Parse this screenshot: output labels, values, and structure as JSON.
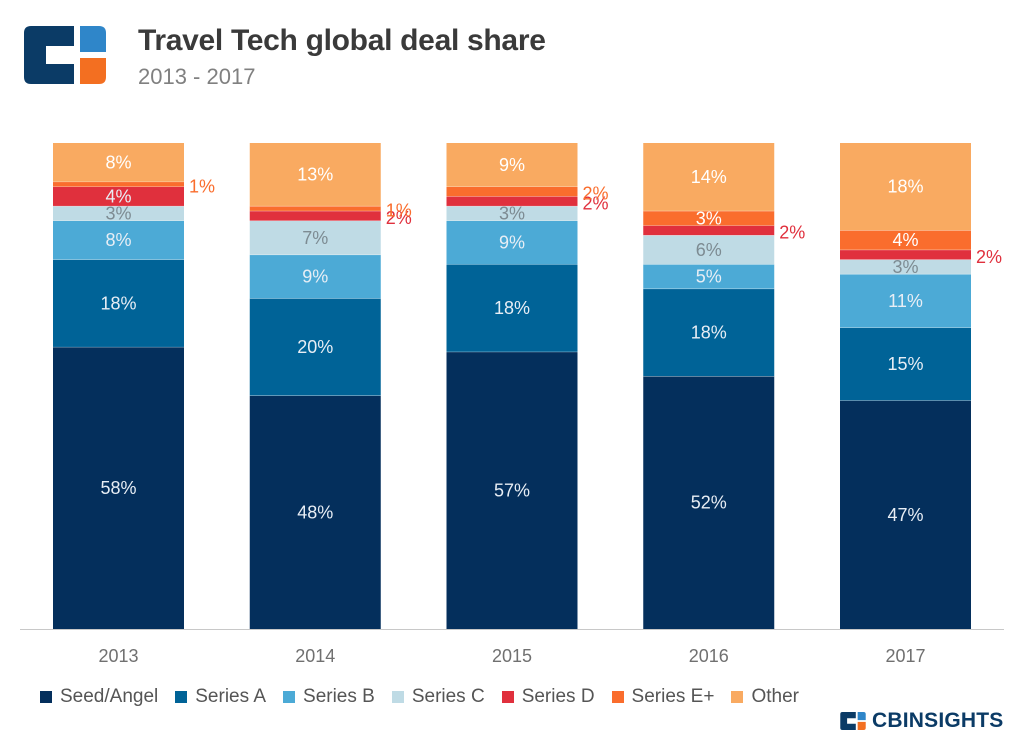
{
  "header": {
    "title": "Travel Tech global deal share",
    "subtitle": "2013 - 2017"
  },
  "brand": {
    "logo_icon": "cb-insights-logo-icon",
    "text": "CBINSIGHTS",
    "colors": {
      "navy": "#0b3b66",
      "blue": "#2f86c9",
      "orange": "#f36f21"
    }
  },
  "chart_data": {
    "type": "bar",
    "stacked": true,
    "title": "Travel Tech global deal share",
    "subtitle": "2013 - 2017",
    "xlabel": "",
    "ylabel": "",
    "ylim": [
      0,
      100
    ],
    "grid": false,
    "legend_position": "bottom",
    "categories": [
      "2013",
      "2014",
      "2015",
      "2016",
      "2017"
    ],
    "series": [
      {
        "name": "Seed/Angel",
        "color": "#042f5c",
        "values": [
          58,
          48,
          57,
          52,
          47
        ],
        "labels": [
          "58%",
          "48%",
          "57%",
          "52%",
          "47%"
        ]
      },
      {
        "name": "Series A",
        "color": "#006397",
        "values": [
          18,
          20,
          18,
          18,
          15
        ],
        "labels": [
          "18%",
          "20%",
          "18%",
          "18%",
          "15%"
        ]
      },
      {
        "name": "Series B",
        "color": "#4caad6",
        "values": [
          8,
          9,
          9,
          5,
          11
        ],
        "labels": [
          "8%",
          "9%",
          "9%",
          "5%",
          "11%"
        ]
      },
      {
        "name": "Series C",
        "color": "#bfdbe5",
        "values": [
          3,
          7,
          3,
          6,
          3
        ],
        "labels": [
          "3%",
          "7%",
          "3%",
          "6%",
          "3%"
        ]
      },
      {
        "name": "Series D",
        "color": "#e0303d",
        "values": [
          4,
          2,
          2,
          2,
          2
        ],
        "labels": [
          "4%",
          "2%",
          "2%",
          "2%",
          "2%"
        ]
      },
      {
        "name": "Series E+",
        "color": "#fa6d2d",
        "values": [
          1,
          1,
          2,
          3,
          4
        ],
        "labels": [
          "1%",
          "1%",
          "2%",
          "3%",
          "4%"
        ]
      },
      {
        "name": "Other",
        "color": "#f9aa61",
        "values": [
          8,
          13,
          9,
          14,
          18
        ],
        "labels": [
          "8%",
          "13%",
          "9%",
          "14%",
          "18%"
        ]
      }
    ]
  }
}
